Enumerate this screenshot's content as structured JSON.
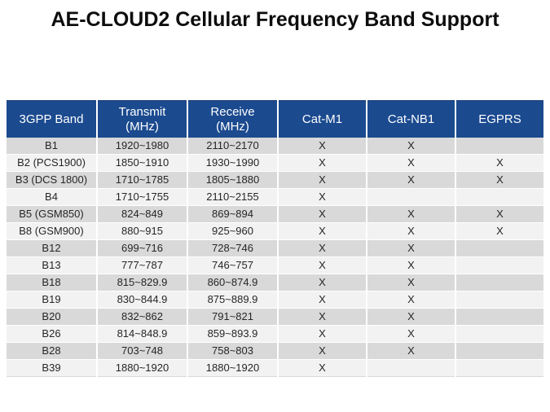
{
  "title": "AE-CLOUD2 Cellular Frequency Band Support",
  "colors": {
    "header_bg": "#1b4a8f",
    "header_text": "#ffffff",
    "row_band_dark": "#d9d9d9",
    "row_band_light": "#f2f2f2",
    "body_text": "#262626",
    "title_text": "#0d0d0d"
  },
  "table": {
    "columns": [
      {
        "line1": "3GPP Band",
        "line2": ""
      },
      {
        "line1": "Transmit",
        "line2": "(MHz)"
      },
      {
        "line1": "Receive",
        "line2": "(MHz)"
      },
      {
        "line1": "Cat-M1",
        "line2": ""
      },
      {
        "line1": "Cat-NB1",
        "line2": ""
      },
      {
        "line1": "EGPRS",
        "line2": ""
      }
    ],
    "rows": [
      {
        "band": "B1",
        "transmit": "1920~1980",
        "receive": "2110~2170",
        "cat_m1": "X",
        "cat_nb1": "X",
        "egprs": ""
      },
      {
        "band": "B2 (PCS1900)",
        "transmit": "1850~1910",
        "receive": "1930~1990",
        "cat_m1": "X",
        "cat_nb1": "X",
        "egprs": "X"
      },
      {
        "band": "B3 (DCS 1800)",
        "transmit": "1710~1785",
        "receive": "1805~1880",
        "cat_m1": "X",
        "cat_nb1": "X",
        "egprs": "X"
      },
      {
        "band": "B4",
        "transmit": "1710~1755",
        "receive": "2110~2155",
        "cat_m1": "X",
        "cat_nb1": "",
        "egprs": ""
      },
      {
        "band": "B5 (GSM850)",
        "transmit": "824~849",
        "receive": "869~894",
        "cat_m1": "X",
        "cat_nb1": "X",
        "egprs": "X"
      },
      {
        "band": "B8 (GSM900)",
        "transmit": "880~915",
        "receive": "925~960",
        "cat_m1": "X",
        "cat_nb1": "X",
        "egprs": "X"
      },
      {
        "band": "B12",
        "transmit": "699~716",
        "receive": "728~746",
        "cat_m1": "X",
        "cat_nb1": "X",
        "egprs": ""
      },
      {
        "band": "B13",
        "transmit": "777~787",
        "receive": "746~757",
        "cat_m1": "X",
        "cat_nb1": "X",
        "egprs": ""
      },
      {
        "band": "B18",
        "transmit": "815~829.9",
        "receive": "860~874.9",
        "cat_m1": "X",
        "cat_nb1": "X",
        "egprs": ""
      },
      {
        "band": "B19",
        "transmit": "830~844.9",
        "receive": "875~889.9",
        "cat_m1": "X",
        "cat_nb1": "X",
        "egprs": ""
      },
      {
        "band": "B20",
        "transmit": "832~862",
        "receive": "791~821",
        "cat_m1": "X",
        "cat_nb1": "X",
        "egprs": ""
      },
      {
        "band": "B26",
        "transmit": "814~848.9",
        "receive": "859~893.9",
        "cat_m1": "X",
        "cat_nb1": "X",
        "egprs": ""
      },
      {
        "band": "B28",
        "transmit": "703~748",
        "receive": "758~803",
        "cat_m1": "X",
        "cat_nb1": "X",
        "egprs": ""
      },
      {
        "band": "B39",
        "transmit": "1880~1920",
        "receive": "1880~1920",
        "cat_m1": "X",
        "cat_nb1": "",
        "egprs": ""
      }
    ]
  }
}
